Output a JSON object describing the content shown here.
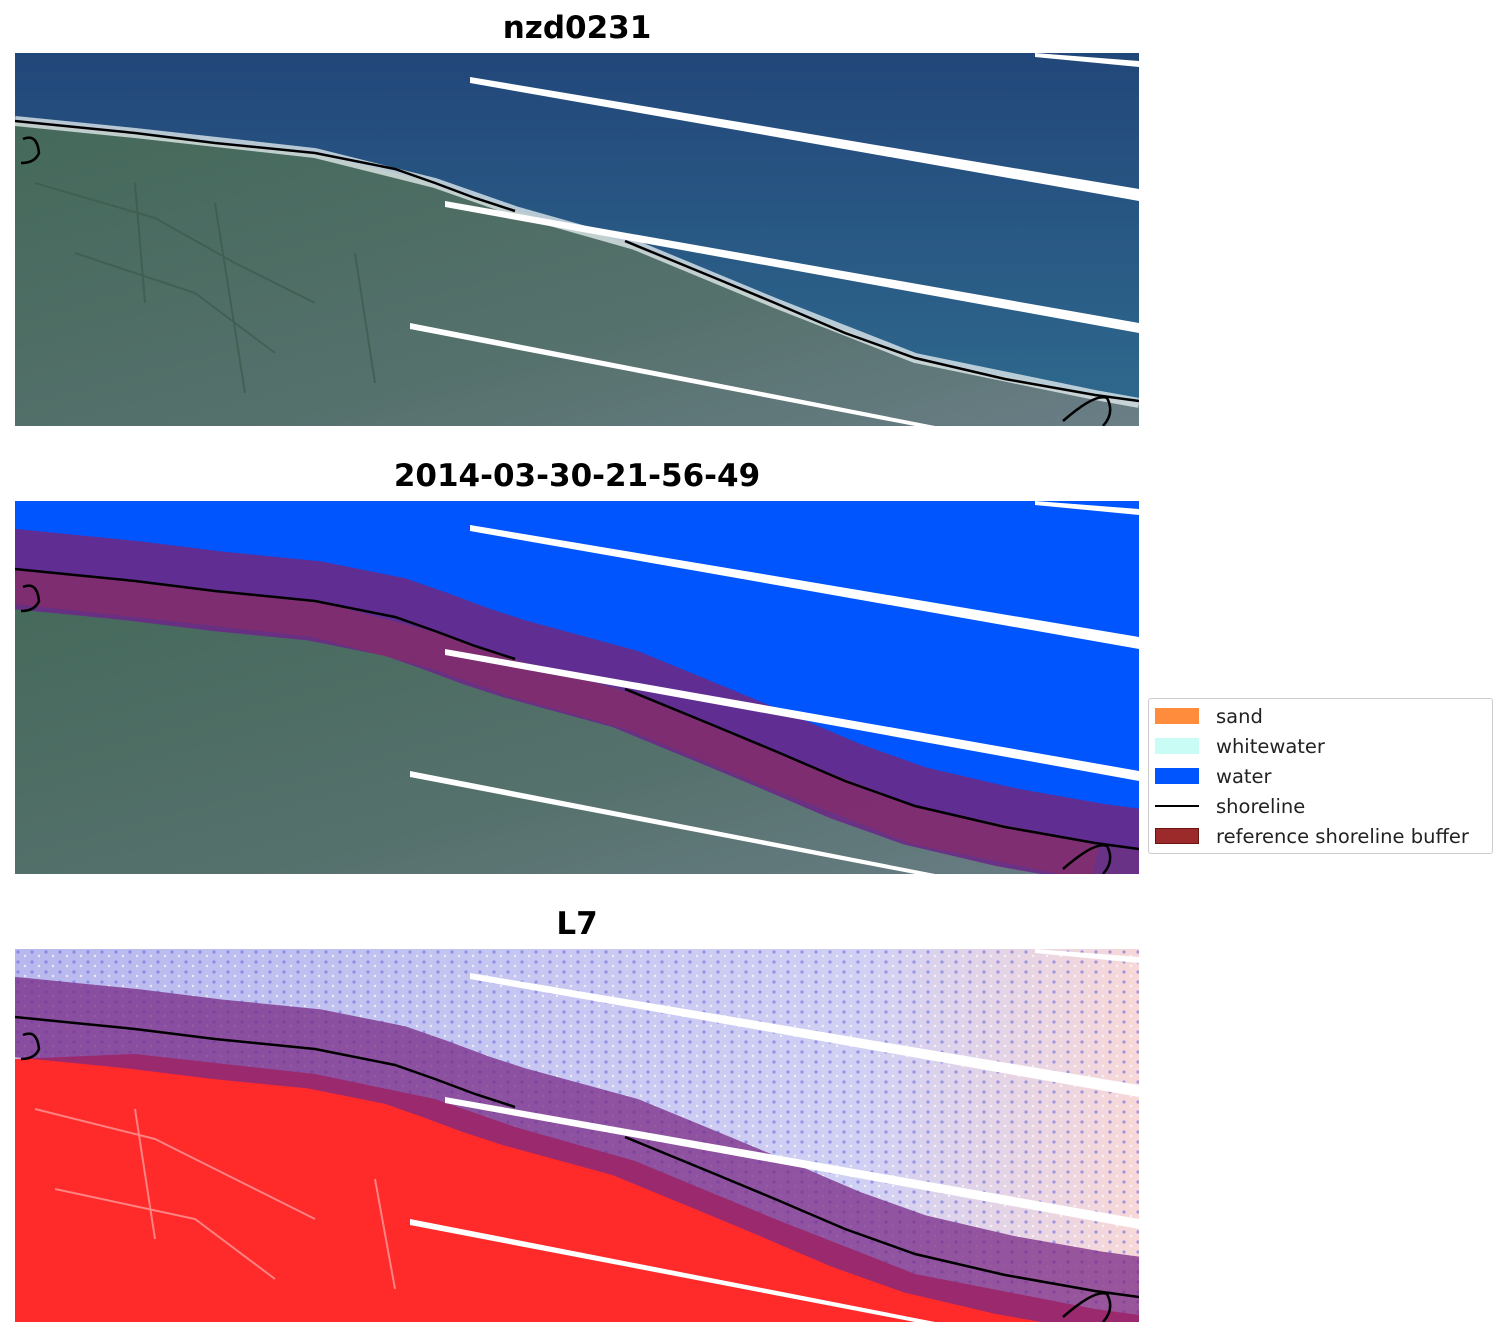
{
  "panels": [
    {
      "title": "nzd0231",
      "view": "rgb-with-shoreline"
    },
    {
      "title": "2014-03-30-21-56-49",
      "view": "classified-with-buffer"
    },
    {
      "title": "L7",
      "view": "index-with-buffer"
    }
  ],
  "legend": {
    "items": [
      {
        "label": "sand",
        "kind": "patch",
        "color": "#ff8c3c"
      },
      {
        "label": "whitewater",
        "kind": "patch",
        "color": "#c8fcf4"
      },
      {
        "label": "water",
        "kind": "patch",
        "color": "#0055ff"
      },
      {
        "label": "shoreline",
        "kind": "line",
        "color": "#000000"
      },
      {
        "label": "reference shoreline buffer",
        "kind": "patch",
        "color": "#9c2a2a"
      }
    ]
  },
  "colors": {
    "sea": "#2c5683",
    "land": "#4d6a63",
    "water_class": "#0055ff",
    "buffer": "#6a2a86",
    "index_water": "#c8c8f2",
    "index_land": "#ff2a2a",
    "shoreline": "#000000"
  }
}
